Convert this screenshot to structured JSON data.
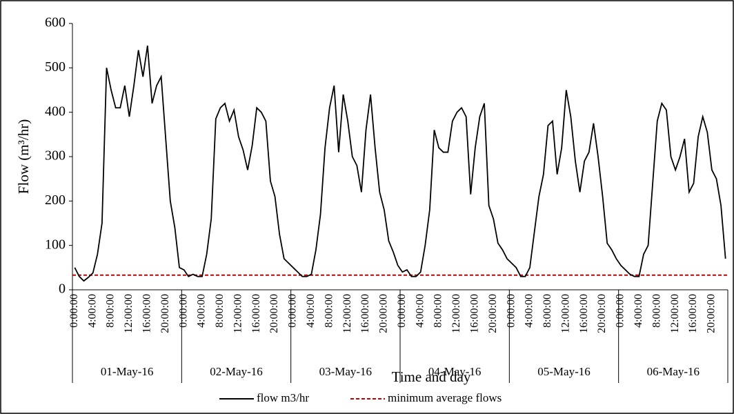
{
  "chart_data": {
    "type": "line",
    "y_label": "Flow (m³/hr)",
    "x_label": "Time and day",
    "days": [
      "01-May-16",
      "02-May-16",
      "03-May-16",
      "04-May-16",
      "05-May-16",
      "06-May-16"
    ],
    "categories": [
      "0:00:00",
      null,
      null,
      null,
      "4:00:00",
      null,
      null,
      null,
      "8:00:00",
      null,
      null,
      null,
      "12:00:00",
      null,
      null,
      null,
      "16:00:00",
      null,
      null,
      null,
      "20:00:00",
      null,
      null,
      null,
      "0:00:00",
      null,
      null,
      null,
      "4:00:00",
      null,
      null,
      null,
      "8:00:00",
      null,
      null,
      null,
      "12:00:00",
      null,
      null,
      null,
      "16:00:00",
      null,
      null,
      null,
      "20:00:00",
      null,
      null,
      null,
      "0:00:00",
      null,
      null,
      null,
      "4:00:00",
      null,
      null,
      null,
      "8:00:00",
      null,
      null,
      null,
      "12:00:00",
      null,
      null,
      null,
      "16:00:00",
      null,
      null,
      null,
      "20:00:00",
      null,
      null,
      null,
      "0:00:00",
      null,
      null,
      null,
      "4:00:00",
      null,
      null,
      null,
      "8:00:00",
      null,
      null,
      null,
      "12:00:00",
      null,
      null,
      null,
      "16:00:00",
      null,
      null,
      null,
      "20:00:00",
      null,
      null,
      null,
      "0:00:00",
      null,
      null,
      null,
      "4:00:00",
      null,
      null,
      null,
      "8:00:00",
      null,
      null,
      null,
      "12:00:00",
      null,
      null,
      null,
      "16:00:00",
      null,
      null,
      null,
      "20:00:00",
      null,
      null,
      null,
      "0:00:00",
      null,
      null,
      null,
      "4:00:00",
      null,
      null,
      null,
      "8:00:00",
      null,
      null,
      null,
      "12:00:00",
      null,
      null,
      null,
      "16:00:00",
      null,
      null,
      null,
      "20:00:00",
      null,
      null,
      null
    ],
    "series": [
      {
        "name": "flow m3/hr",
        "color": "#000000",
        "values": [
          50,
          30,
          20,
          28,
          38,
          80,
          150,
          500,
          450,
          410,
          410,
          460,
          390,
          460,
          540,
          480,
          550,
          420,
          460,
          480,
          340,
          200,
          140,
          50,
          45,
          30,
          35,
          30,
          30,
          80,
          160,
          385,
          410,
          420,
          380,
          405,
          345,
          315,
          270,
          325,
          410,
          400,
          380,
          245,
          210,
          125,
          70,
          60,
          50,
          40,
          30,
          30,
          35,
          90,
          170,
          320,
          410,
          460,
          310,
          440,
          380,
          300,
          280,
          220,
          360,
          440,
          320,
          220,
          180,
          110,
          85,
          55,
          40,
          45,
          30,
          30,
          40,
          100,
          180,
          360,
          320,
          310,
          310,
          380,
          400,
          410,
          390,
          215,
          320,
          390,
          420,
          190,
          160,
          105,
          90,
          70,
          60,
          50,
          30,
          30,
          50,
          130,
          210,
          260,
          370,
          380,
          260,
          320,
          450,
          390,
          290,
          220,
          290,
          310,
          375,
          300,
          210,
          105,
          90,
          70,
          55,
          45,
          35,
          30,
          30,
          80,
          100,
          240,
          380,
          420,
          405,
          300,
          270,
          300,
          340,
          220,
          240,
          345,
          390,
          355,
          270,
          250,
          190,
          70
        ]
      }
    ],
    "reference_line": {
      "name": "minimum average flows",
      "color": "#c00000",
      "value": 33
    },
    "ylim": [
      0,
      600
    ],
    "yticks": [
      0,
      100,
      200,
      300,
      400,
      500,
      600
    ]
  }
}
